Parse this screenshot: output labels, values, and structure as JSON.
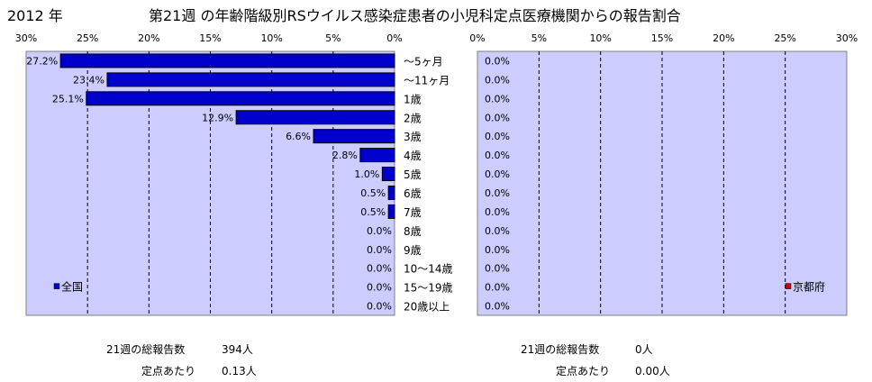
{
  "year_label": "2012 年",
  "title": "第21週 の年齢階級別RSウイルス感染症患者の小児科定点医療機関からの報告割合",
  "colors": {
    "national": "#0000cc",
    "kyoto": "#cc0000",
    "plot_bg": "#ccccff",
    "grid": "#000000"
  },
  "chart_data": [
    {
      "type": "bar",
      "orientation": "horizontal",
      "direction": "right-to-left",
      "categories": [
        "～5ヶ月",
        "～11ヶ月",
        "1歳",
        "2歳",
        "3歳",
        "4歳",
        "5歳",
        "6歳",
        "7歳",
        "8歳",
        "9歳",
        "10～14歳",
        "15～19歳",
        "20歳以上"
      ],
      "series": [
        {
          "name": "全国",
          "values": [
            27.2,
            23.4,
            25.1,
            12.9,
            6.6,
            2.8,
            1.0,
            0.5,
            0.5,
            0.0,
            0.0,
            0.0,
            0.0,
            0.0
          ]
        }
      ],
      "value_labels": [
        "27.2%",
        "23.4%",
        "25.1%",
        "12.9%",
        "6.6%",
        "2.8%",
        "1.0%",
        "0.5%",
        "0.5%",
        "0.0%",
        "0.0%",
        "0.0%",
        "0.0%",
        "0.0%"
      ],
      "xlim": [
        0,
        30
      ],
      "xticks": [
        "30%",
        "25%",
        "20%",
        "15%",
        "10%",
        "5%",
        "0%"
      ],
      "grid": true,
      "legend_position": "bottom-left"
    },
    {
      "type": "bar",
      "orientation": "horizontal",
      "direction": "left-to-right",
      "categories": [
        "～5ヶ月",
        "～11ヶ月",
        "1歳",
        "2歳",
        "3歳",
        "4歳",
        "5歳",
        "6歳",
        "7歳",
        "8歳",
        "9歳",
        "10～14歳",
        "15～19歳",
        "20歳以上"
      ],
      "series": [
        {
          "name": "京都府",
          "values": [
            0,
            0,
            0,
            0,
            0,
            0,
            0,
            0,
            0,
            0,
            0,
            0,
            0,
            0
          ]
        }
      ],
      "value_labels": [
        "0.0%",
        "0.0%",
        "0.0%",
        "0.0%",
        "0.0%",
        "0.0%",
        "0.0%",
        "0.0%",
        "0.0%",
        "0.0%",
        "0.0%",
        "0.0%",
        "0.0%",
        "0.0%"
      ],
      "xlim": [
        0,
        30
      ],
      "xticks": [
        "0%",
        "5%",
        "10%",
        "15%",
        "20%",
        "25%",
        "30%"
      ],
      "grid": true,
      "legend_position": "bottom-right"
    }
  ],
  "stats": {
    "national": {
      "total_label": "21週の総報告数",
      "total_value": "394人",
      "per_label": "定点あたり",
      "per_value": "0.13人"
    },
    "kyoto": {
      "total_label": "21週の総報告数",
      "total_value": "0人",
      "per_label": "定点あたり",
      "per_value": "0.00人"
    }
  }
}
